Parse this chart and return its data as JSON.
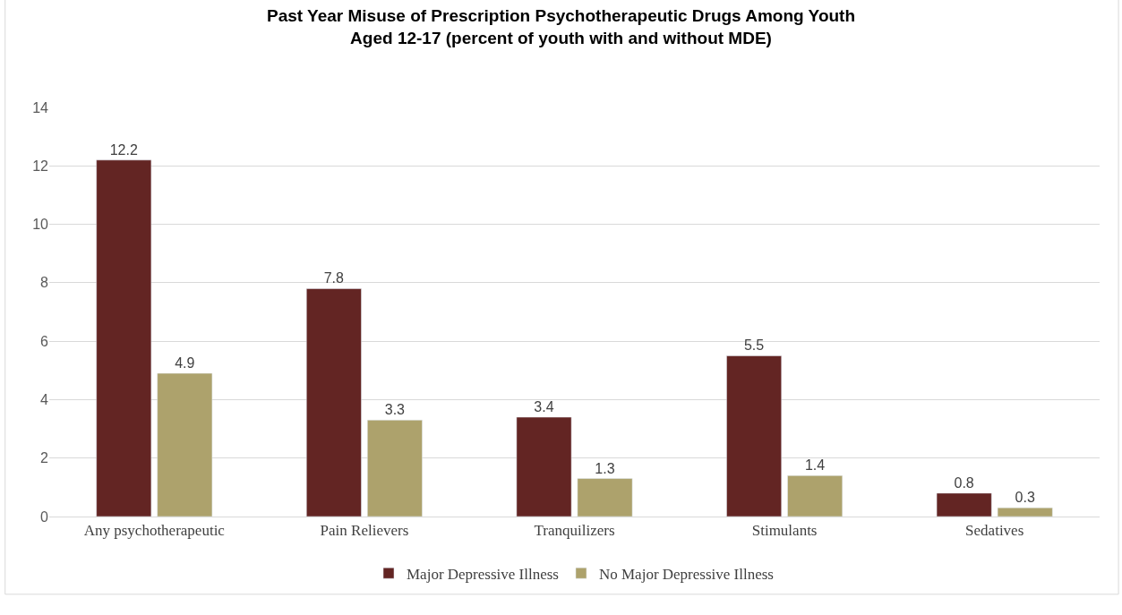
{
  "chart_data": {
    "type": "bar",
    "title": "Past Year Misuse of Prescription Psychotherapeutic Drugs Among Youth\nAged 12-17 (percent of youth with and without MDE)",
    "categories": [
      "Any psychotherapeutic",
      "Pain Relievers",
      "Tranquilizers",
      "Stimulants",
      "Sedatives"
    ],
    "series": [
      {
        "name": "Major Depressive Illness",
        "color": "#632523",
        "values": [
          12.2,
          7.8,
          3.4,
          5.5,
          0.8
        ]
      },
      {
        "name": "No Major Depressive Illness",
        "color": "#ada26c",
        "values": [
          4.9,
          3.3,
          1.3,
          1.4,
          0.3
        ]
      }
    ],
    "ylim": [
      0,
      14
    ],
    "yticks": [
      0,
      2,
      4,
      6,
      8,
      10,
      12,
      14
    ],
    "grid": "y",
    "legend": "bottom",
    "data_labels": true
  }
}
